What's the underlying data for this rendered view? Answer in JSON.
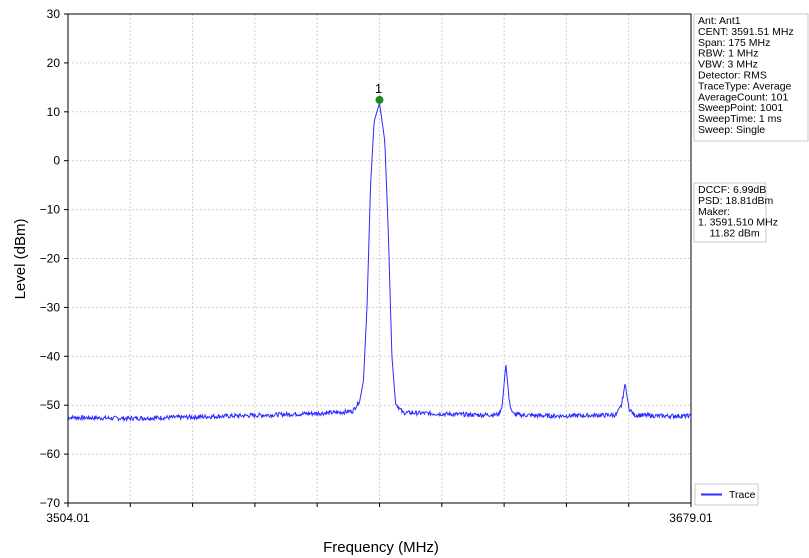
{
  "chart_data": {
    "type": "line",
    "xlabel": "Frequency (MHz)",
    "ylabel": "Level (dBm)",
    "xlim": [
      3504.01,
      3679.01
    ],
    "ylim": [
      -70,
      30
    ],
    "x_tick_labels": [
      "3504.01",
      "3679.01"
    ],
    "y_ticks": [
      30,
      20,
      10,
      0,
      -10,
      -20,
      -30,
      -40,
      -50,
      -60,
      -70
    ],
    "y_tick_labels": [
      "30",
      "20",
      "10",
      "0",
      "−10",
      "−20",
      "−30",
      "−40",
      "−50",
      "−60",
      "−70"
    ],
    "x_grid_divisions": 10,
    "grid": true,
    "series": [
      {
        "name": "Trace",
        "color": "#2b2bff",
        "x": [
          3504.01,
          3520,
          3540,
          3560,
          3580,
          3584,
          3586,
          3587,
          3588,
          3589,
          3590,
          3591.51,
          3593,
          3594,
          3595,
          3596,
          3598,
          3610,
          3620,
          3625,
          3626,
          3627,
          3628,
          3629,
          3631,
          3640,
          3650,
          3658,
          3659.5,
          3660.5,
          3661.5,
          3663,
          3670,
          3679.01
        ],
        "y": [
          -52.5,
          -52.7,
          -52.4,
          -52.0,
          -51.5,
          -51.2,
          -49.0,
          -45.0,
          -30.0,
          -5.0,
          8.0,
          11.82,
          4.0,
          -15.0,
          -40.0,
          -49.5,
          -51.5,
          -51.8,
          -52.0,
          -51.9,
          -50.0,
          -41.5,
          -49.5,
          -51.8,
          -52.0,
          -52.2,
          -52.1,
          -52.0,
          -50.0,
          -45.5,
          -50.5,
          -52.0,
          -52.2,
          -52.2
        ]
      }
    ],
    "marker": {
      "label": "1",
      "x": 3591.51,
      "y": 11.82,
      "color": "#1a8a1a"
    },
    "legend": {
      "position": "bottom-right",
      "label": "Trace"
    }
  },
  "info_panel": {
    "lines": [
      "Ant: Ant1",
      "CENT: 3591.51 MHz",
      "Span: 175 MHz",
      "RBW: 1 MHz",
      "VBW: 3 MHz",
      "Detector: RMS",
      "TraceType: Average",
      "AverageCount: 101",
      "SweepPoint: 1001",
      "SweepTime: 1 ms",
      "Sweep: Single"
    ]
  },
  "measure_panel": {
    "lines": [
      "DCCF: 6.99dB",
      "PSD: 18.81dBm",
      "Maker:",
      "1. 3591.510 MHz",
      "    11.82 dBm"
    ]
  }
}
